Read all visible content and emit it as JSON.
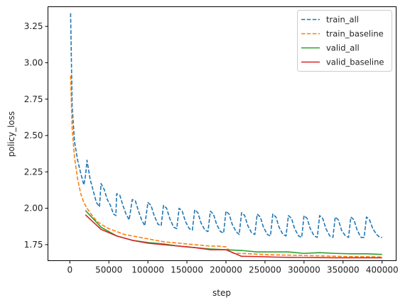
{
  "chart_data": {
    "type": "line",
    "xlabel": "step",
    "ylabel": "policy_loss",
    "xlim": [
      -28000,
      418000
    ],
    "ylim": [
      1.64,
      3.385
    ],
    "x_ticks": [
      0,
      50000,
      100000,
      150000,
      200000,
      250000,
      300000,
      350000,
      400000
    ],
    "x_tick_labels": [
      "0",
      "50000",
      "100000",
      "150000",
      "200000",
      "250000",
      "300000",
      "350000",
      "400000"
    ],
    "y_ticks": [
      1.75,
      2.0,
      2.25,
      2.5,
      2.75,
      3.0,
      3.25
    ],
    "y_tick_labels": [
      "1.75",
      "2.00",
      "2.25",
      "2.50",
      "2.75",
      "3.00",
      "3.25"
    ],
    "legend_position": "top-right",
    "grid": false,
    "series": [
      {
        "name": "train_all",
        "color": "#1f77b4",
        "dash": "dashed",
        "points": [
          [
            1000,
            3.34
          ],
          [
            3000,
            2.7
          ],
          [
            6000,
            2.46
          ],
          [
            10000,
            2.33
          ],
          [
            14000,
            2.24
          ],
          [
            18000,
            2.16
          ],
          [
            20000,
            2.22
          ],
          [
            22000,
            2.33
          ],
          [
            26000,
            2.2
          ],
          [
            30000,
            2.12
          ],
          [
            34000,
            2.04
          ],
          [
            38000,
            2.01
          ],
          [
            40000,
            2.17
          ],
          [
            44000,
            2.13
          ],
          [
            48000,
            2.06
          ],
          [
            52000,
            2.02
          ],
          [
            56000,
            1.96
          ],
          [
            59000,
            1.95
          ],
          [
            60000,
            2.1
          ],
          [
            64000,
            2.09
          ],
          [
            68000,
            2.02
          ],
          [
            72000,
            1.96
          ],
          [
            76000,
            1.92
          ],
          [
            80000,
            2.06
          ],
          [
            84000,
            2.05
          ],
          [
            88000,
            1.98
          ],
          [
            92000,
            1.92
          ],
          [
            96000,
            1.88
          ],
          [
            100000,
            2.04
          ],
          [
            104000,
            2.02
          ],
          [
            108000,
            1.95
          ],
          [
            113000,
            1.89
          ],
          [
            117000,
            1.88
          ],
          [
            120000,
            2.02
          ],
          [
            124000,
            2.0
          ],
          [
            128000,
            1.93
          ],
          [
            133000,
            1.87
          ],
          [
            137000,
            1.86
          ],
          [
            140000,
            2.0
          ],
          [
            144000,
            1.98
          ],
          [
            148000,
            1.91
          ],
          [
            153000,
            1.86
          ],
          [
            157000,
            1.85
          ],
          [
            160000,
            1.99
          ],
          [
            164000,
            1.97
          ],
          [
            168000,
            1.9
          ],
          [
            173000,
            1.85
          ],
          [
            177000,
            1.84
          ],
          [
            180000,
            1.98
          ],
          [
            184000,
            1.96
          ],
          [
            188000,
            1.89
          ],
          [
            193000,
            1.84
          ],
          [
            197000,
            1.83
          ],
          [
            200000,
            1.98
          ],
          [
            204000,
            1.96
          ],
          [
            208000,
            1.89
          ],
          [
            213000,
            1.84
          ],
          [
            217000,
            1.82
          ],
          [
            220000,
            1.97
          ],
          [
            224000,
            1.95
          ],
          [
            228000,
            1.88
          ],
          [
            233000,
            1.83
          ],
          [
            237000,
            1.82
          ],
          [
            240000,
            1.96
          ],
          [
            244000,
            1.94
          ],
          [
            248000,
            1.87
          ],
          [
            253000,
            1.82
          ],
          [
            257000,
            1.81
          ],
          [
            260000,
            1.96
          ],
          [
            264000,
            1.94
          ],
          [
            268000,
            1.87
          ],
          [
            273000,
            1.82
          ],
          [
            277000,
            1.81
          ],
          [
            280000,
            1.95
          ],
          [
            284000,
            1.93
          ],
          [
            288000,
            1.86
          ],
          [
            293000,
            1.81
          ],
          [
            297000,
            1.8
          ],
          [
            300000,
            1.95
          ],
          [
            304000,
            1.93
          ],
          [
            308000,
            1.86
          ],
          [
            313000,
            1.81
          ],
          [
            317000,
            1.8
          ],
          [
            320000,
            1.95
          ],
          [
            324000,
            1.93
          ],
          [
            328000,
            1.86
          ],
          [
            333000,
            1.81
          ],
          [
            337000,
            1.8
          ],
          [
            340000,
            1.94
          ],
          [
            344000,
            1.92
          ],
          [
            348000,
            1.85
          ],
          [
            353000,
            1.81
          ],
          [
            357000,
            1.8
          ],
          [
            360000,
            1.94
          ],
          [
            364000,
            1.92
          ],
          [
            368000,
            1.85
          ],
          [
            373000,
            1.8
          ],
          [
            377000,
            1.8
          ],
          [
            380000,
            1.94
          ],
          [
            384000,
            1.92
          ],
          [
            388000,
            1.86
          ],
          [
            393000,
            1.82
          ],
          [
            397000,
            1.8
          ],
          [
            400000,
            1.8
          ]
        ]
      },
      {
        "name": "train_baseline",
        "color": "#ff7f0e",
        "dash": "dashed",
        "points": [
          [
            1000,
            2.91
          ],
          [
            3000,
            2.55
          ],
          [
            6000,
            2.35
          ],
          [
            10000,
            2.2
          ],
          [
            14000,
            2.1
          ],
          [
            18000,
            2.04
          ],
          [
            22000,
            2.0
          ],
          [
            26000,
            1.97
          ],
          [
            30000,
            1.94
          ],
          [
            35000,
            1.91
          ],
          [
            40000,
            1.89
          ],
          [
            50000,
            1.86
          ],
          [
            60000,
            1.84
          ],
          [
            70000,
            1.82
          ],
          [
            80000,
            1.81
          ],
          [
            90000,
            1.8
          ],
          [
            100000,
            1.79
          ],
          [
            110000,
            1.78
          ],
          [
            120000,
            1.77
          ],
          [
            130000,
            1.765
          ],
          [
            140000,
            1.76
          ],
          [
            150000,
            1.755
          ],
          [
            160000,
            1.75
          ],
          [
            170000,
            1.745
          ],
          [
            180000,
            1.74
          ],
          [
            190000,
            1.74
          ],
          [
            200000,
            1.735
          ],
          [
            205000,
            1.705
          ],
          [
            210000,
            1.69
          ],
          [
            220000,
            1.69
          ],
          [
            240000,
            1.685
          ],
          [
            260000,
            1.68
          ],
          [
            280000,
            1.678
          ],
          [
            300000,
            1.675
          ],
          [
            320000,
            1.673
          ],
          [
            340000,
            1.67
          ],
          [
            360000,
            1.668
          ],
          [
            380000,
            1.667
          ],
          [
            400000,
            1.665
          ]
        ]
      },
      {
        "name": "valid_all",
        "color": "#2ca02c",
        "dash": "solid",
        "points": [
          [
            20000,
            1.985
          ],
          [
            40000,
            1.87
          ],
          [
            60000,
            1.81
          ],
          [
            80000,
            1.78
          ],
          [
            100000,
            1.765
          ],
          [
            120000,
            1.755
          ],
          [
            140000,
            1.74
          ],
          [
            160000,
            1.73
          ],
          [
            180000,
            1.72
          ],
          [
            200000,
            1.715
          ],
          [
            220000,
            1.71
          ],
          [
            240000,
            1.7
          ],
          [
            260000,
            1.7
          ],
          [
            280000,
            1.7
          ],
          [
            300000,
            1.69
          ],
          [
            320000,
            1.695
          ],
          [
            340000,
            1.69
          ],
          [
            360000,
            1.687
          ],
          [
            380000,
            1.687
          ],
          [
            400000,
            1.683
          ]
        ]
      },
      {
        "name": "valid_baseline",
        "color": "#d62728",
        "dash": "solid",
        "points": [
          [
            20000,
            1.955
          ],
          [
            40000,
            1.855
          ],
          [
            60000,
            1.81
          ],
          [
            80000,
            1.78
          ],
          [
            100000,
            1.76
          ],
          [
            120000,
            1.75
          ],
          [
            140000,
            1.74
          ],
          [
            160000,
            1.73
          ],
          [
            180000,
            1.715
          ],
          [
            200000,
            1.715
          ],
          [
            220000,
            1.67
          ],
          [
            240000,
            1.668
          ],
          [
            260000,
            1.665
          ],
          [
            280000,
            1.663
          ],
          [
            300000,
            1.662
          ],
          [
            320000,
            1.661
          ],
          [
            340000,
            1.66
          ],
          [
            360000,
            1.66
          ],
          [
            380000,
            1.66
          ],
          [
            400000,
            1.66
          ]
        ]
      }
    ]
  }
}
